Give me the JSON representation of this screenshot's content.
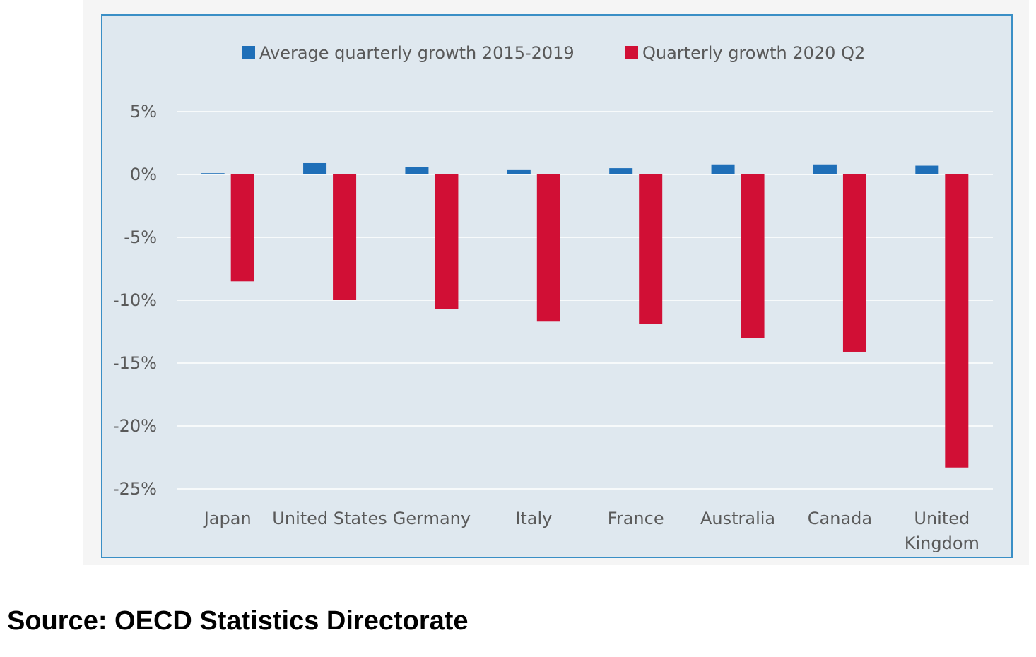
{
  "chart_data": {
    "type": "bar",
    "categories": [
      [
        "Japan"
      ],
      [
        "United States"
      ],
      [
        "Germany"
      ],
      [
        "Italy"
      ],
      [
        "France"
      ],
      [
        "Australia"
      ],
      [
        "Canada"
      ],
      [
        "United",
        "Kingdom"
      ]
    ],
    "series": [
      {
        "name": "Average quarterly growth 2015-2019",
        "color": "#1f6fb8",
        "values": [
          0.1,
          0.9,
          0.6,
          0.4,
          0.5,
          0.8,
          0.8,
          0.7
        ]
      },
      {
        "name": "Quarterly growth 2020 Q2",
        "color": "#d10f35",
        "values": [
          -8.5,
          -10.0,
          -10.7,
          -11.7,
          -11.9,
          -13.0,
          -14.1,
          -23.3
        ]
      }
    ],
    "yticks": [
      "5%",
      "0%",
      "-5%",
      "-10%",
      "-15%",
      "-20%",
      "-25%"
    ],
    "ytick_values": [
      5,
      0,
      -5,
      -10,
      -15,
      -20,
      -25
    ],
    "ylim": [
      -25,
      5
    ],
    "grid": true,
    "legend_position": "top"
  },
  "source_text": "Source: OECD Statistics Directorate"
}
